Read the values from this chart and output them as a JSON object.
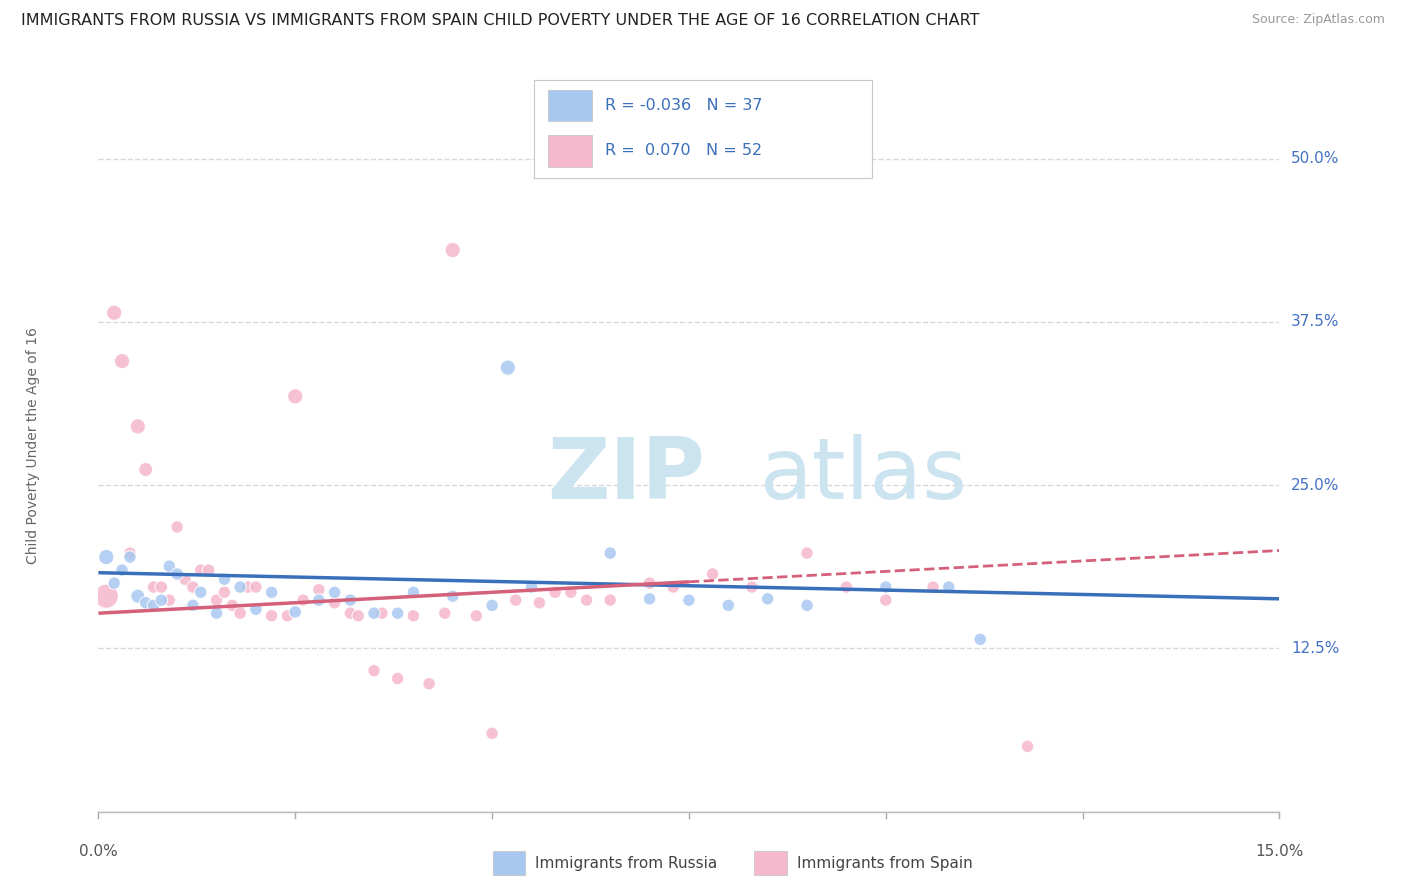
{
  "title": "IMMIGRANTS FROM RUSSIA VS IMMIGRANTS FROM SPAIN CHILD POVERTY UNDER THE AGE OF 16 CORRELATION CHART",
  "source": "Source: ZipAtlas.com",
  "ylabel": "Child Poverty Under the Age of 16",
  "yaxis_labels": [
    "50.0%",
    "37.5%",
    "25.0%",
    "12.5%"
  ],
  "yaxis_values": [
    0.5,
    0.375,
    0.25,
    0.125
  ],
  "xlim": [
    0.0,
    0.15
  ],
  "ylim": [
    0.0,
    0.56
  ],
  "legend_russia": {
    "R": "-0.036",
    "N": "37",
    "color": "#a8c8f0",
    "line_color": "#3a6fba"
  },
  "legend_spain": {
    "R": "0.070",
    "N": "52",
    "color": "#f5b8cc",
    "line_color": "#d4607a"
  },
  "russia_scatter": [
    [
      0.001,
      0.195
    ],
    [
      0.002,
      0.175
    ],
    [
      0.003,
      0.185
    ],
    [
      0.004,
      0.195
    ],
    [
      0.005,
      0.165
    ],
    [
      0.006,
      0.16
    ],
    [
      0.007,
      0.158
    ],
    [
      0.008,
      0.162
    ],
    [
      0.009,
      0.188
    ],
    [
      0.01,
      0.182
    ],
    [
      0.012,
      0.158
    ],
    [
      0.013,
      0.168
    ],
    [
      0.015,
      0.152
    ],
    [
      0.016,
      0.178
    ],
    [
      0.018,
      0.172
    ],
    [
      0.02,
      0.155
    ],
    [
      0.022,
      0.168
    ],
    [
      0.025,
      0.153
    ],
    [
      0.028,
      0.162
    ],
    [
      0.03,
      0.168
    ],
    [
      0.032,
      0.162
    ],
    [
      0.035,
      0.152
    ],
    [
      0.038,
      0.152
    ],
    [
      0.04,
      0.168
    ],
    [
      0.045,
      0.165
    ],
    [
      0.05,
      0.158
    ],
    [
      0.052,
      0.34
    ],
    [
      0.055,
      0.172
    ],
    [
      0.065,
      0.198
    ],
    [
      0.07,
      0.163
    ],
    [
      0.075,
      0.162
    ],
    [
      0.08,
      0.158
    ],
    [
      0.085,
      0.163
    ],
    [
      0.09,
      0.158
    ],
    [
      0.1,
      0.172
    ],
    [
      0.108,
      0.172
    ],
    [
      0.112,
      0.132
    ]
  ],
  "spain_scatter": [
    [
      0.001,
      0.165
    ],
    [
      0.002,
      0.382
    ],
    [
      0.003,
      0.345
    ],
    [
      0.004,
      0.198
    ],
    [
      0.005,
      0.295
    ],
    [
      0.006,
      0.262
    ],
    [
      0.007,
      0.172
    ],
    [
      0.008,
      0.172
    ],
    [
      0.009,
      0.162
    ],
    [
      0.01,
      0.218
    ],
    [
      0.011,
      0.178
    ],
    [
      0.012,
      0.172
    ],
    [
      0.013,
      0.185
    ],
    [
      0.014,
      0.185
    ],
    [
      0.015,
      0.162
    ],
    [
      0.016,
      0.168
    ],
    [
      0.017,
      0.158
    ],
    [
      0.018,
      0.152
    ],
    [
      0.019,
      0.172
    ],
    [
      0.02,
      0.172
    ],
    [
      0.022,
      0.15
    ],
    [
      0.024,
      0.15
    ],
    [
      0.025,
      0.318
    ],
    [
      0.026,
      0.162
    ],
    [
      0.028,
      0.17
    ],
    [
      0.03,
      0.16
    ],
    [
      0.032,
      0.152
    ],
    [
      0.033,
      0.15
    ],
    [
      0.035,
      0.108
    ],
    [
      0.036,
      0.152
    ],
    [
      0.038,
      0.102
    ],
    [
      0.04,
      0.15
    ],
    [
      0.042,
      0.098
    ],
    [
      0.044,
      0.152
    ],
    [
      0.045,
      0.43
    ],
    [
      0.048,
      0.15
    ],
    [
      0.05,
      0.06
    ],
    [
      0.053,
      0.162
    ],
    [
      0.056,
      0.16
    ],
    [
      0.058,
      0.168
    ],
    [
      0.06,
      0.168
    ],
    [
      0.062,
      0.162
    ],
    [
      0.065,
      0.162
    ],
    [
      0.07,
      0.175
    ],
    [
      0.073,
      0.172
    ],
    [
      0.078,
      0.182
    ],
    [
      0.083,
      0.172
    ],
    [
      0.09,
      0.198
    ],
    [
      0.095,
      0.172
    ],
    [
      0.1,
      0.162
    ],
    [
      0.106,
      0.172
    ],
    [
      0.118,
      0.05
    ]
  ],
  "russia_sizes": [
    120,
    80,
    80,
    80,
    100,
    80,
    80,
    80,
    80,
    80,
    80,
    80,
    80,
    80,
    80,
    80,
    80,
    80,
    80,
    80,
    80,
    80,
    80,
    80,
    80,
    80,
    120,
    80,
    80,
    80,
    80,
    80,
    80,
    80,
    80,
    80,
    80
  ],
  "spain_sizes": [
    300,
    120,
    120,
    80,
    120,
    100,
    80,
    80,
    80,
    80,
    80,
    80,
    80,
    80,
    80,
    80,
    80,
    80,
    80,
    80,
    80,
    80,
    120,
    80,
    80,
    80,
    80,
    80,
    80,
    80,
    80,
    80,
    80,
    80,
    120,
    80,
    80,
    80,
    80,
    80,
    80,
    80,
    80,
    80,
    80,
    80,
    80,
    80,
    80,
    80,
    80,
    80
  ],
  "background_color": "#ffffff",
  "grid_color": "#d8d8d8",
  "watermark_color": "#cce4f0",
  "title_fontsize": 11.5,
  "axis_label_fontsize": 10,
  "tick_fontsize": 11
}
